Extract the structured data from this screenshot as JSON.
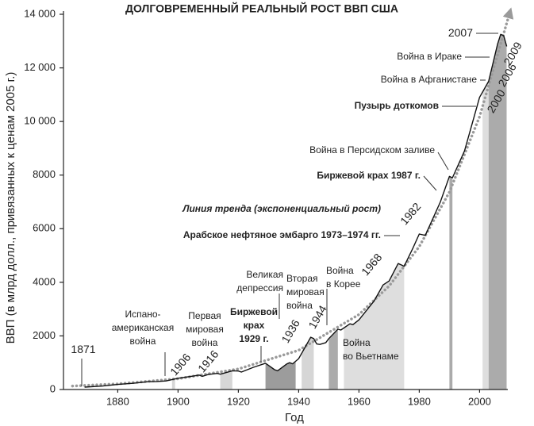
{
  "chart_data": {
    "type": "line",
    "title": "ДОЛГОВРЕМЕННЫЙ РЕАЛЬНЫЙ РОСТ ВВП США",
    "x_label": "Год",
    "y_label": "ВВП (в млрд долл., привязанных к ценам 2005 г.)",
    "xlim": [
      1862,
      2012
    ],
    "ylim": [
      0,
      14000
    ],
    "xticks": [
      1880,
      1900,
      1920,
      1940,
      1960,
      1980,
      2000
    ],
    "yticks": [
      0,
      2000,
      4000,
      6000,
      8000,
      {
        "value": 10000,
        "label": "10 000"
      },
      {
        "value": 12000,
        "label": "12 000"
      },
      {
        "value": 14000,
        "label": "14 000"
      }
    ],
    "series": [
      {
        "color": "#111111",
        "x": [
          1869,
          1875,
          1880,
          1885,
          1890,
          1893,
          1896,
          1900,
          1905,
          1907,
          1908,
          1910,
          1913,
          1914,
          1918,
          1920,
          1921,
          1925,
          1929,
          1930,
          1932,
          1933,
          1936,
          1937,
          1938,
          1940,
          1942,
          1944,
          1945,
          1946,
          1947,
          1949,
          1950,
          1953,
          1954,
          1957,
          1958,
          1960,
          1965,
          1968,
          1970,
          1973,
          1974,
          1975,
          1978,
          1980,
          1982,
          1985,
          1987,
          1990,
          1991,
          1995,
          2000,
          2001,
          2003,
          2006,
          2007,
          2008,
          2009
        ],
        "values": [
          90,
          130,
          190,
          230,
          290,
          300,
          320,
          420,
          500,
          540,
          490,
          560,
          600,
          570,
          700,
          690,
          650,
          830,
          980,
          900,
          740,
          700,
          950,
          1000,
          960,
          1150,
          1550,
          1950,
          1900,
          1700,
          1680,
          1750,
          1900,
          2250,
          2220,
          2450,
          2420,
          2600,
          3300,
          3900,
          4050,
          4700,
          4650,
          4600,
          5300,
          5800,
          5750,
          6500,
          7000,
          7950,
          7900,
          8900,
          10900,
          11100,
          11500,
          12900,
          13250,
          13200,
          12800
        ]
      },
      {
        "color": "#9a9a9a",
        "dotted": true,
        "x": [
          1865,
          1880,
          1900,
          1920,
          1940,
          1960,
          1970,
          1980,
          1990,
          2000,
          2010
        ],
        "values": [
          130,
          211,
          403,
          768,
          1465,
          2797,
          3862,
          5335,
          7368,
          10178,
          14056
        ]
      }
    ],
    "bands": [
      {
        "start": 1898,
        "end": 1899,
        "color": "#d6d6d6"
      },
      {
        "start": 1914,
        "end": 1918,
        "color": "#d6d6d6"
      },
      {
        "start": 1929,
        "end": 1939,
        "color": "#9c9c9c"
      },
      {
        "start": 1941,
        "end": 1945,
        "color": "#d6d6d6"
      },
      {
        "start": 1950,
        "end": 1953,
        "color": "#ababab"
      },
      {
        "start": 1955,
        "end": 1975,
        "color": "#dedede"
      },
      {
        "start": 1990,
        "end": 1991,
        "color": "#ababab"
      },
      {
        "start": 2001,
        "end": 2003,
        "color": "#dedede"
      },
      {
        "start": 2003,
        "end": 2009,
        "color": "#ababab"
      }
    ],
    "annotations": [
      [
        "1871"
      ],
      [
        "Испано-",
        "американская",
        "война"
      ],
      [
        "1906"
      ],
      [
        "Первая",
        "мировая",
        "война"
      ],
      [
        "1916"
      ],
      [
        "Биржевой",
        "крах",
        "1929 г."
      ],
      [
        "Великая",
        "депрессия"
      ],
      [
        "1936"
      ],
      [
        "Вторая",
        "мировая",
        "война"
      ],
      [
        "1944"
      ],
      [
        "Война",
        "в Корее"
      ],
      [
        "Война",
        "во Вьетнаме"
      ],
      [
        "1968"
      ],
      [
        "Арабское нефтяное эмбарго 1973–1974 гг."
      ],
      [
        "Линия тренда (экспоненциальный рост)"
      ],
      [
        "1982"
      ],
      [
        "Биржевой крах 1987 г."
      ],
      [
        "Война в Персидском заливе"
      ],
      [
        "Пузырь доткомов"
      ],
      [
        "2000"
      ],
      [
        "Война в Афганистане"
      ],
      [
        "Война в Ираке"
      ],
      [
        "2006"
      ],
      [
        "2009"
      ],
      [
        "2007"
      ]
    ]
  }
}
